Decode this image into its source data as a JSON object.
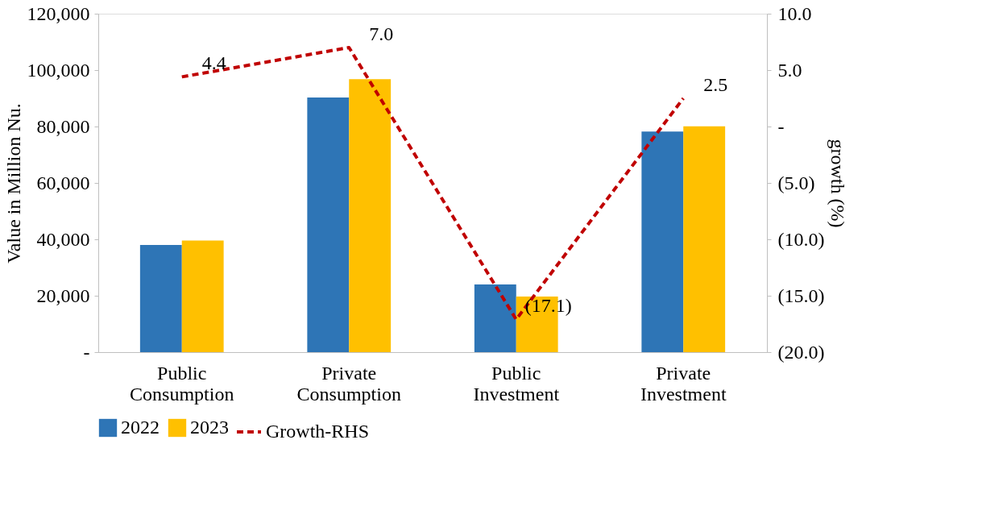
{
  "chart_data": {
    "type": "bar",
    "categories": [
      "Public Consumption",
      "Private Consumption",
      "Public Investment",
      "Private Investment"
    ],
    "ylabel": "Value in Million Nu.",
    "y2label": "growth (%)",
    "ylim": [
      0,
      120000
    ],
    "yticks": [
      {
        "value": 0,
        "label": "-"
      },
      {
        "value": 20000,
        "label": "20,000"
      },
      {
        "value": 40000,
        "label": "40,000"
      },
      {
        "value": 60000,
        "label": "60,000"
      },
      {
        "value": 80000,
        "label": "80,000"
      },
      {
        "value": 100000,
        "label": "100,000"
      },
      {
        "value": 120000,
        "label": "120,000"
      }
    ],
    "y2lim": [
      -20,
      10
    ],
    "y2ticks": [
      {
        "value": -20,
        "label": "(20.0)"
      },
      {
        "value": -15,
        "label": "(15.0)"
      },
      {
        "value": -10,
        "label": "(10.0)"
      },
      {
        "value": -5,
        "label": "(5.0)"
      },
      {
        "value": 0,
        "label": "-"
      },
      {
        "value": 5,
        "label": "5.0"
      },
      {
        "value": 10,
        "label": "10.0"
      }
    ],
    "series": [
      {
        "name": "2022",
        "color": "#2e75b6",
        "values": [
          38000,
          90300,
          24000,
          78200
        ]
      },
      {
        "name": "2023",
        "color": "#ffc000",
        "values": [
          39600,
          96800,
          19700,
          80100
        ]
      },
      {
        "name": "Growth-RHS",
        "type": "line",
        "axis": "y2",
        "color": "#c00000",
        "line_style": "dashed",
        "values": [
          4.4,
          7.0,
          -17.1,
          2.5
        ],
        "value_labels": [
          "4.4",
          "7.0",
          "(17.1)",
          "2.5"
        ]
      }
    ],
    "legend": "bottom",
    "grid": false
  }
}
